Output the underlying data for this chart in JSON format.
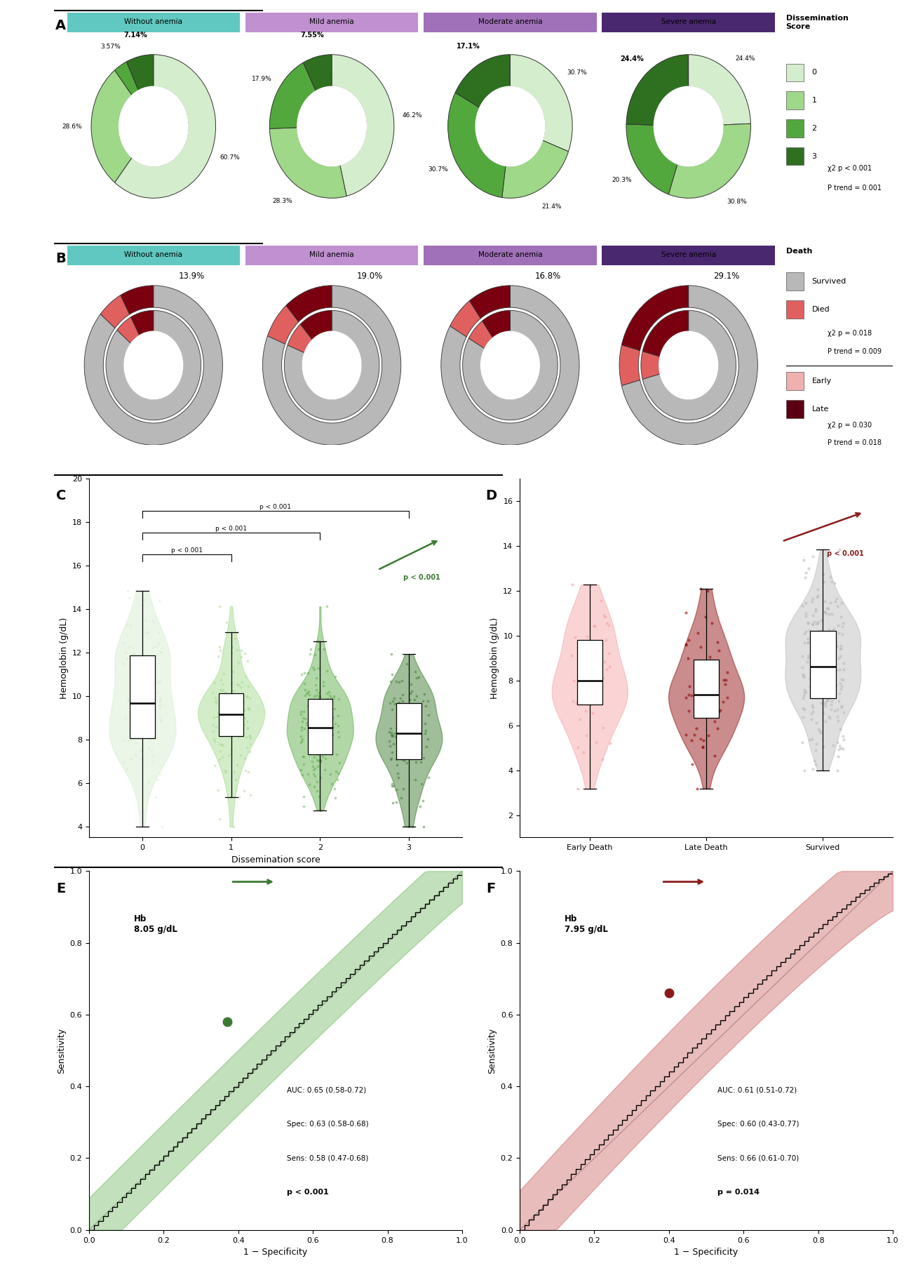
{
  "panel_A_titles": [
    "Without anemia",
    "Mild anemia",
    "Moderate anemia",
    "Severe anemia"
  ],
  "panel_A_bg_colors": [
    "#aee0da",
    "#dcc8e8",
    "#c8b0d8",
    "#7a5898"
  ],
  "panel_A_header_colors": [
    "#60c8c0",
    "#c090d0",
    "#a070b8",
    "#4a2870"
  ],
  "panel_A_data": [
    [
      60.7,
      28.6,
      3.57,
      7.14
    ],
    [
      46.2,
      28.3,
      17.9,
      7.55
    ],
    [
      30.7,
      21.4,
      30.7,
      17.1
    ],
    [
      24.4,
      30.8,
      20.3,
      24.4
    ]
  ],
  "panel_A_labels": [
    [
      "60.7%",
      "28.6%",
      "3.57%",
      "7.14%"
    ],
    [
      "46.2%",
      "28.3%",
      "17.9%",
      "7.55%"
    ],
    [
      "30.7%",
      "21.4%",
      "30.7%",
      "17.1%"
    ],
    [
      "24.4%",
      "30.8%",
      "20.3%",
      "24.4%"
    ]
  ],
  "panel_A_bold_idx": [
    3,
    3,
    3,
    3
  ],
  "dissemination_colors": [
    "#d4edcc",
    "#9fd888",
    "#52a83c",
    "#2e7020"
  ],
  "panel_B_titles": [
    "Without anemia",
    "Mild anemia",
    "Moderate anemia",
    "Severe anemia"
  ],
  "panel_B_bg_colors": [
    "#aee0da",
    "#dcc8e8",
    "#c8b0d8",
    "#7a5898"
  ],
  "panel_B_header_colors": [
    "#60c8c0",
    "#c090d0",
    "#a070b8",
    "#4a2870"
  ],
  "panel_B_survived": [
    86.1,
    81.0,
    83.2,
    70.9
  ],
  "panel_B_early": [
    6.0,
    7.5,
    6.8,
    8.2
  ],
  "panel_B_late": [
    7.9,
    11.5,
    10.0,
    20.9
  ],
  "panel_B_pct_labels": [
    "13.9%",
    "19.0%",
    "16.8%",
    "29.1%"
  ],
  "panel_C_xlabel": "Dissemination score",
  "panel_C_ylabel": "Hemoglobin (g/dL)",
  "panel_C_groups": [
    "0",
    "1",
    "2",
    "3"
  ],
  "panel_C_colors": [
    "#d4edcc",
    "#9fd888",
    "#52a83c",
    "#2e7020"
  ],
  "panel_C_ylim": [
    3.5,
    20
  ],
  "panel_D_ylabel": "Hemoglobin (g/dL)",
  "panel_D_groups": [
    "Early Death",
    "Late Death",
    "Survived"
  ],
  "panel_D_colors": [
    "#f4a0a0",
    "#8b0000",
    "#b8b8b8"
  ],
  "panel_D_ylim": [
    1,
    17
  ],
  "panel_E_color": "#3a7a30",
  "panel_E_fill_color": "#52a83c",
  "panel_E_opt_point": [
    0.37,
    0.58
  ],
  "panel_E_auc_lines": [
    "AUC: 0.65 (0.58-0.72)",
    "Spec: 0.63 (0.58-0.68)",
    "Sens: 0.58 (0.47-0.68)"
  ],
  "panel_E_pval": "p < 0.001",
  "panel_E_hb_label": "Hb\n8.05 g/dL",
  "panel_F_color": "#8b1a1a",
  "panel_F_fill_color": "#c04040",
  "panel_F_opt_point": [
    0.4,
    0.66
  ],
  "panel_F_auc_lines": [
    "AUC: 0.61 (0.51-0.72)",
    "Spec: 0.60 (0.43-0.77)",
    "Sens: 0.66 (0.61-0.70)"
  ],
  "panel_F_pval": "p = 0.014",
  "panel_F_hb_label": "Hb\n7.95 g/dL"
}
